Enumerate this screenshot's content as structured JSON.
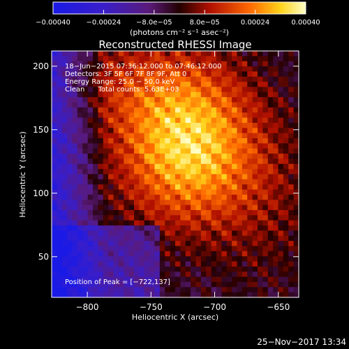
{
  "chart_data": {
    "type": "heatmap",
    "title": "Reconstructed RHESSI Image",
    "xlabel": "Heliocentric X (arcsec)",
    "ylabel": "Heliocentric Y (arcsec)",
    "xlim": [
      -828,
      -634
    ],
    "ylim": [
      18,
      212
    ],
    "xticks": [
      -800,
      -750,
      -700,
      -650
    ],
    "yticks": [
      50,
      100,
      150,
      200
    ],
    "xtick_labels": [
      "−800",
      "−750",
      "−700",
      "−650"
    ],
    "ytick_labels": [
      "50",
      "100",
      "150",
      "200"
    ],
    "colorbar": {
      "range": [
        -0.0004,
        0.0004
      ],
      "ticks": [
        -0.0004,
        -0.00024,
        -8e-05,
        8e-05,
        0.00024,
        0.0004
      ],
      "tick_labels": [
        "−0.00040",
        "−0.00024",
        "−8.0e−05",
        "8.0e−05",
        "0.00024",
        "0.00040"
      ],
      "unit_label": "(photons cm⁻² s⁻¹ asec⁻²)"
    },
    "annotations": [
      "18−Jun−2015 07:36:12.000 to 07:46:12.000",
      "Detectors: 3F 5F 6F 7F 8F 9F, Att 0",
      "Energy Range: 25.0 − 50.0 keV",
      "Clean      Total counts: 5.63E+03"
    ],
    "peak_label": "Position of Peak = [−722,137]",
    "peak": [
      -722,
      137
    ],
    "footer": "25−Nov−2017 13:34",
    "grid": false
  }
}
